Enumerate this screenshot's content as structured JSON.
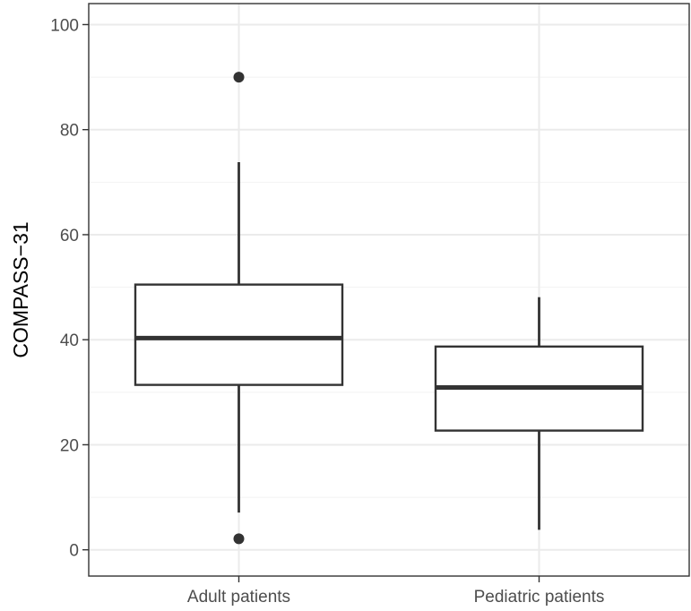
{
  "chart_data": {
    "type": "boxplot",
    "title": "",
    "xlabel": "",
    "ylabel": "COMPASS−31",
    "ylim": [
      -5,
      104
    ],
    "y_ticks": [
      0,
      20,
      40,
      60,
      80,
      100
    ],
    "y_tick_labels": [
      "0",
      "20",
      "40",
      "60",
      "80",
      "100"
    ],
    "grid": true,
    "legend": "none",
    "categories": [
      "Adult patients",
      "Pediatric patients"
    ],
    "boxes": [
      {
        "category": "Adult patients",
        "whisker_low": 7.1,
        "q1": 31.4,
        "median": 40.3,
        "q3": 50.5,
        "whisker_high": 73.8,
        "outliers": [
          90,
          2.1
        ]
      },
      {
        "category": "Pediatric patients",
        "whisker_low": 3.8,
        "q1": 22.7,
        "median": 30.9,
        "q3": 38.7,
        "whisker_high": 48.1,
        "outliers": []
      }
    ],
    "colors": {
      "box_stroke": "#333333",
      "box_fill": "#ffffff",
      "grid_major": "#ebebeb",
      "grid_minor": "#f2f2f2",
      "panel_border": "#333333",
      "tick_text": "#4d4d4d",
      "title_text": "#000000"
    }
  }
}
